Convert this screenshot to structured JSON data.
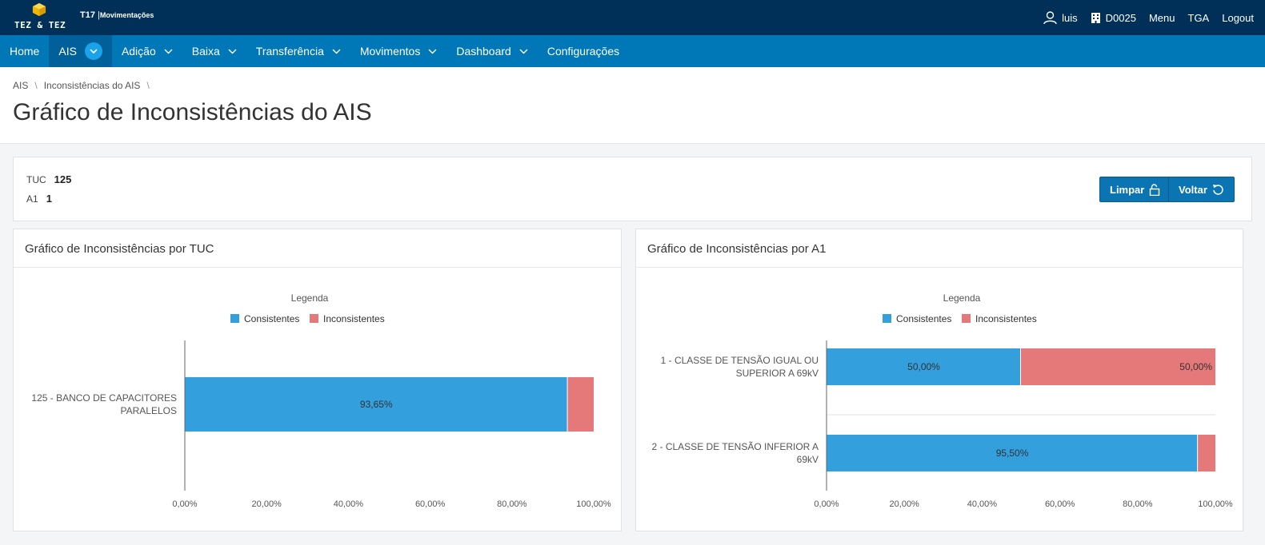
{
  "header": {
    "logo_text": "TEZ & TEZ",
    "app_code": "T17",
    "app_name": "Movimentações",
    "logo_icon": "cube-icon",
    "user": "luis",
    "unit": "D0025",
    "menu": "Menu",
    "org": "TGA",
    "logout": "Logout"
  },
  "nav": {
    "items": [
      {
        "label": "Home"
      },
      {
        "label": "AIS"
      },
      {
        "label": "Adição"
      },
      {
        "label": "Baixa"
      },
      {
        "label": "Transferência"
      },
      {
        "label": "Movimentos"
      },
      {
        "label": "Dashboard"
      },
      {
        "label": "Configurações"
      }
    ]
  },
  "breadcrumb": [
    "AIS",
    "Inconsistências do AIS"
  ],
  "page_title": "Gráfico de Inconsistências do AIS",
  "filters": {
    "tuc_label": "TUC",
    "tuc_value": "125",
    "a1_label": "A1",
    "a1_value": "1",
    "limpar": "Limpar",
    "voltar": "Voltar"
  },
  "colors": {
    "consistentes": "#339fdc",
    "inconsistentes": "#e57878"
  },
  "chart_data": [
    {
      "type": "bar",
      "orientation": "horizontal",
      "stacked": true,
      "title": "Gráfico de Inconsistências por TUC",
      "legend_title": "Legenda",
      "legend_position": "top",
      "categories": [
        "125 - BANCO DE CAPACITORES PARALELOS"
      ],
      "series": [
        {
          "name": "Consistentes",
          "values": [
            93.65
          ],
          "labels": [
            "93,65%"
          ]
        },
        {
          "name": "Inconsistentes",
          "values": [
            6.35
          ],
          "labels": [
            ""
          ]
        }
      ],
      "xticks": [
        "0,00%",
        "20,00%",
        "40,00%",
        "60,00%",
        "80,00%",
        "100,00%"
      ],
      "xlim": [
        0,
        100
      ]
    },
    {
      "type": "bar",
      "orientation": "horizontal",
      "stacked": true,
      "title": "Gráfico de Inconsistências por A1",
      "legend_title": "Legenda",
      "legend_position": "top",
      "categories": [
        "1 - CLASSE DE TENSÃO IGUAL OU SUPERIOR A 69kV",
        "2 - CLASSE DE TENSÃO INFERIOR A 69kV"
      ],
      "series": [
        {
          "name": "Consistentes",
          "values": [
            50.0,
            95.5
          ],
          "labels": [
            "50,00%",
            "95,50%"
          ]
        },
        {
          "name": "Inconsistentes",
          "values": [
            50.0,
            4.5
          ],
          "labels": [
            "50,00%",
            ""
          ]
        }
      ],
      "xticks": [
        "0,00%",
        "20,00%",
        "40,00%",
        "60,00%",
        "80,00%",
        "100,00%"
      ],
      "xlim": [
        0,
        100
      ]
    }
  ]
}
